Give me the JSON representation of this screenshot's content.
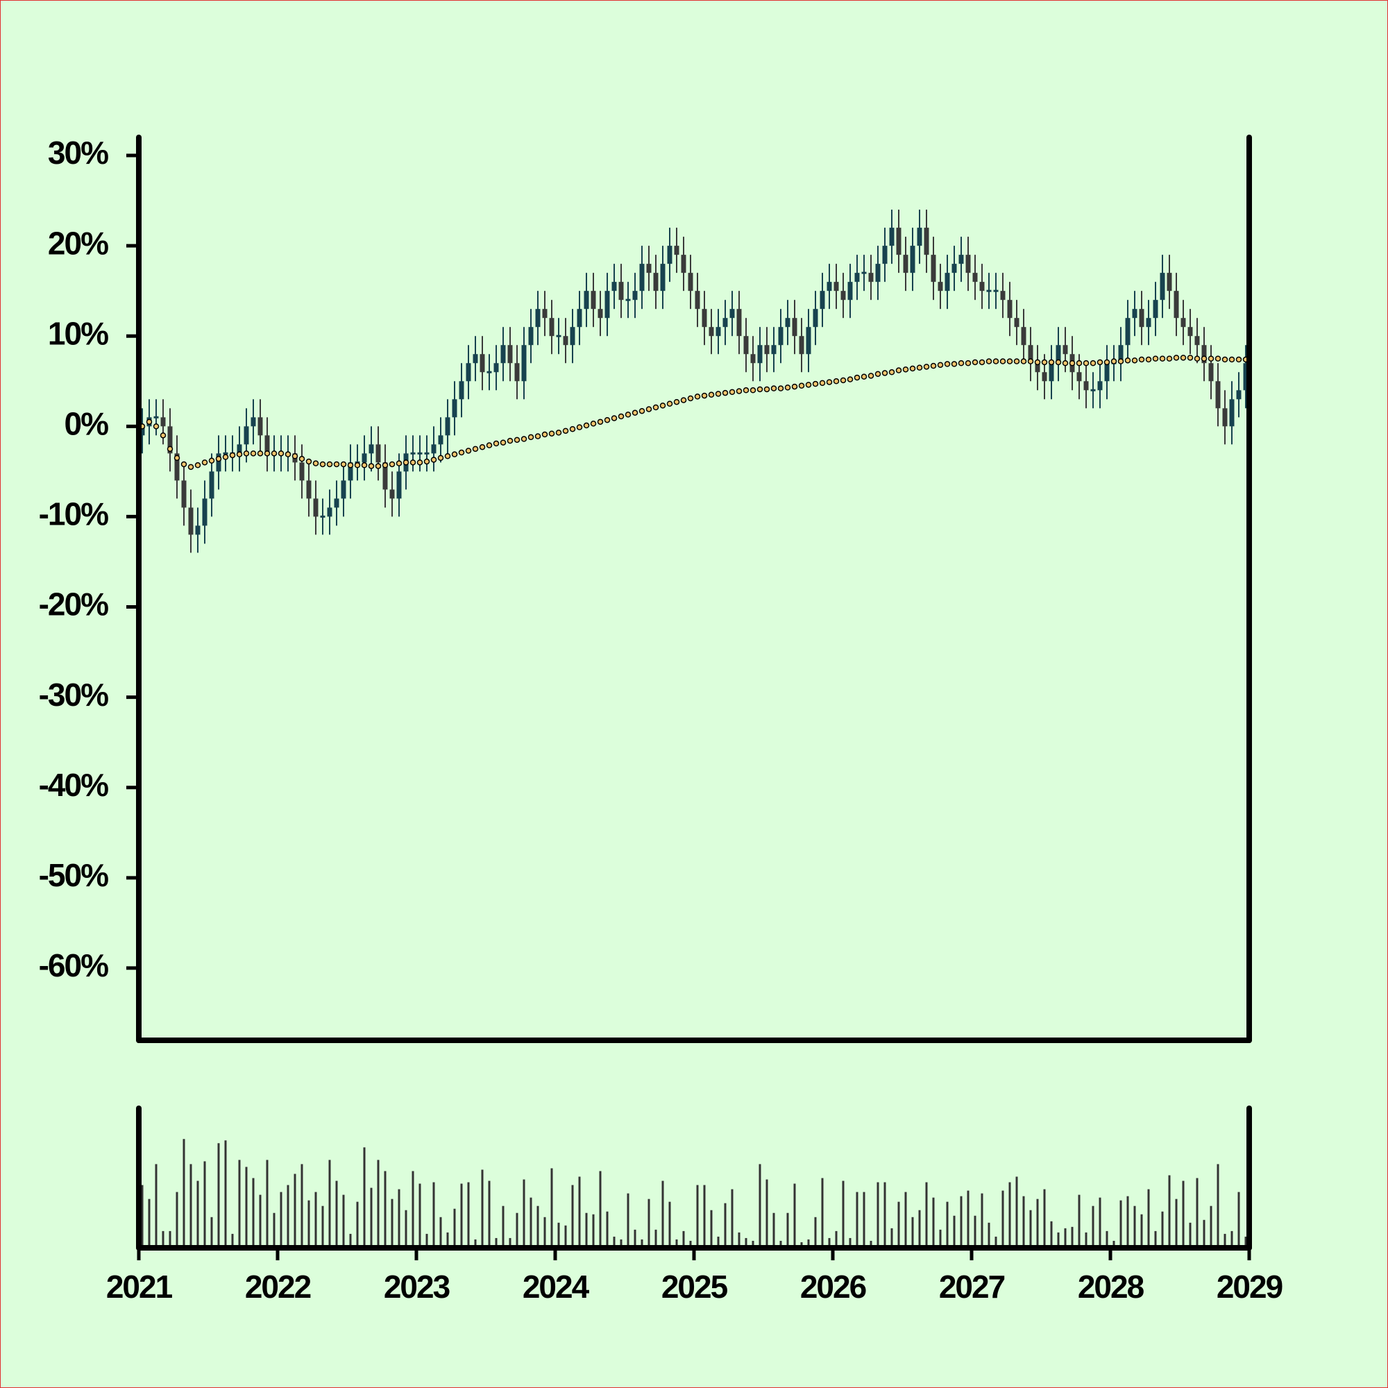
{
  "chart_data": {
    "type": "candlestick",
    "x": [
      2021.025,
      2021.075,
      2021.125,
      2021.175,
      2021.225,
      2021.275,
      2021.325,
      2021.375,
      2021.425,
      2021.475,
      2021.525,
      2021.575,
      2021.625,
      2021.675,
      2021.725,
      2021.775,
      2021.825,
      2021.875,
      2021.925,
      2021.975,
      2022.025,
      2022.075,
      2022.125,
      2022.175,
      2022.225,
      2022.275,
      2022.325,
      2022.375,
      2022.425,
      2022.475,
      2022.525,
      2022.575,
      2022.625,
      2022.675,
      2022.725,
      2022.775,
      2022.825,
      2022.875,
      2022.925,
      2022.975,
      2023.025,
      2023.075,
      2023.125,
      2023.175,
      2023.225,
      2023.275,
      2023.325,
      2023.375,
      2023.425,
      2023.475,
      2023.525,
      2023.575,
      2023.625,
      2023.675,
      2023.725,
      2023.775,
      2023.825,
      2023.875,
      2023.925,
      2023.975,
      2024.025,
      2024.075,
      2024.125,
      2024.175,
      2024.225,
      2024.275,
      2024.325,
      2024.375,
      2024.425,
      2024.475,
      2024.525,
      2024.575,
      2024.625,
      2024.675,
      2024.725,
      2024.775,
      2024.825,
      2024.875,
      2024.925,
      2024.975,
      2025.025,
      2025.075,
      2025.125,
      2025.175,
      2025.225,
      2025.275,
      2025.325,
      2025.375,
      2025.425,
      2025.475,
      2025.525,
      2025.575,
      2025.625,
      2025.675,
      2025.725,
      2025.775,
      2025.825,
      2025.875,
      2025.925,
      2025.975,
      2026.025,
      2026.075,
      2026.125,
      2026.175,
      2026.225,
      2026.275,
      2026.325,
      2026.375,
      2026.425,
      2026.475,
      2026.525,
      2026.575,
      2026.625,
      2026.675,
      2026.725,
      2026.775,
      2026.825,
      2026.875,
      2026.925,
      2026.975,
      2027.025,
      2027.075,
      2027.125,
      2027.175,
      2027.225,
      2027.275,
      2027.325,
      2027.375,
      2027.425,
      2027.475,
      2027.525,
      2027.575,
      2027.625,
      2027.675,
      2027.725,
      2027.775,
      2027.825,
      2027.875,
      2027.925,
      2027.975,
      2028.025,
      2028.075,
      2028.125,
      2028.175,
      2028.225,
      2028.275,
      2028.325,
      2028.375,
      2028.425,
      2028.475,
      2028.525,
      2028.575,
      2028.625,
      2028.675,
      2028.725,
      2028.775,
      2028.825,
      2028.875,
      2028.925,
      2028.975
    ],
    "open": [
      -1,
      0,
      1,
      1,
      0,
      -3,
      -6,
      -9,
      -12,
      -11,
      -8,
      -5,
      -3,
      -3,
      -3,
      -2,
      0,
      1,
      -1,
      -3,
      -3,
      -3,
      -3,
      -4,
      -6,
      -8,
      -10,
      -10,
      -9,
      -8,
      -6,
      -4,
      -4,
      -3,
      -2,
      -4,
      -7,
      -8,
      -5,
      -3,
      -3,
      -3,
      -3,
      -2,
      -1,
      1,
      3,
      5,
      7,
      8,
      6,
      6,
      7,
      9,
      7,
      5,
      9,
      11,
      13,
      12,
      10,
      10,
      9,
      11,
      13,
      15,
      13,
      12,
      15,
      16,
      14,
      14,
      15,
      18,
      17,
      15,
      18,
      20,
      19,
      17,
      15,
      13,
      11,
      10,
      11,
      12,
      13,
      10,
      8,
      7,
      9,
      8,
      9,
      11,
      12,
      10,
      8,
      11,
      13,
      15,
      16,
      15,
      14,
      16,
      17,
      17,
      16,
      18,
      20,
      22,
      19,
      17,
      20,
      22,
      19,
      16,
      15,
      17,
      18,
      19,
      17,
      16,
      15,
      15,
      15,
      14,
      12,
      11,
      9,
      7,
      6,
      5,
      7,
      9,
      8,
      6,
      5,
      4,
      4,
      5,
      7,
      7,
      9,
      12,
      13,
      11,
      12,
      14,
      17,
      15,
      12,
      11,
      10,
      9,
      7,
      5,
      2,
      0,
      3,
      4
    ],
    "high": [
      2,
      3,
      3,
      3,
      2,
      -1,
      -4,
      -7,
      -9,
      -6,
      -3,
      -1,
      -1,
      -1,
      0,
      2,
      3,
      3,
      1,
      -1,
      -1,
      -1,
      -1,
      -2,
      -4,
      -6,
      -8,
      -7,
      -6,
      -4,
      -2,
      -2,
      -1,
      0,
      0,
      -2,
      -5,
      -3,
      -1,
      -1,
      -1,
      -1,
      0,
      1,
      3,
      5,
      7,
      9,
      10,
      10,
      8,
      9,
      11,
      11,
      9,
      11,
      13,
      15,
      15,
      14,
      12,
      12,
      13,
      15,
      17,
      17,
      15,
      17,
      18,
      18,
      16,
      17,
      20,
      20,
      19,
      20,
      22,
      22,
      21,
      19,
      17,
      15,
      13,
      13,
      14,
      15,
      15,
      12,
      10,
      11,
      11,
      11,
      13,
      14,
      14,
      12,
      13,
      15,
      17,
      18,
      18,
      17,
      18,
      19,
      19,
      19,
      20,
      22,
      24,
      24,
      21,
      22,
      24,
      24,
      21,
      18,
      19,
      20,
      21,
      21,
      19,
      18,
      17,
      17,
      17,
      16,
      14,
      13,
      11,
      9,
      8,
      9,
      11,
      11,
      10,
      8,
      7,
      6,
      7,
      9,
      9,
      11,
      14,
      15,
      15,
      14,
      16,
      19,
      19,
      17,
      14,
      13,
      12,
      11,
      9,
      7,
      4,
      5,
      6,
      9
    ],
    "low": [
      -3,
      -2,
      -1,
      -2,
      -5,
      -8,
      -11,
      -14,
      -14,
      -13,
      -10,
      -7,
      -5,
      -5,
      -5,
      -4,
      -2,
      -3,
      -5,
      -5,
      -5,
      -5,
      -6,
      -8,
      -10,
      -12,
      -12,
      -12,
      -11,
      -10,
      -8,
      -6,
      -6,
      -5,
      -6,
      -9,
      -10,
      -10,
      -7,
      -5,
      -5,
      -5,
      -5,
      -4,
      -3,
      -1,
      1,
      3,
      5,
      4,
      4,
      4,
      5,
      5,
      3,
      3,
      7,
      9,
      10,
      8,
      8,
      7,
      7,
      9,
      11,
      11,
      10,
      10,
      13,
      12,
      12,
      12,
      13,
      15,
      13,
      13,
      16,
      17,
      15,
      13,
      11,
      9,
      8,
      8,
      9,
      10,
      8,
      6,
      5,
      5,
      6,
      6,
      7,
      9,
      8,
      6,
      6,
      9,
      11,
      13,
      13,
      12,
      12,
      14,
      15,
      14,
      14,
      16,
      18,
      17,
      15,
      15,
      18,
      17,
      14,
      13,
      13,
      15,
      16,
      15,
      14,
      13,
      13,
      13,
      12,
      10,
      9,
      7,
      5,
      4,
      3,
      3,
      5,
      6,
      4,
      3,
      2,
      2,
      2,
      3,
      5,
      5,
      7,
      10,
      9,
      9,
      10,
      12,
      13,
      10,
      9,
      8,
      7,
      5,
      3,
      0,
      -2,
      -2,
      1,
      2
    ],
    "close": [
      0,
      1,
      1,
      0,
      -3,
      -6,
      -9,
      -12,
      -11,
      -8,
      -5,
      -3,
      -3,
      -3,
      -2,
      0,
      1,
      -1,
      -3,
      -3,
      -3,
      -3,
      -4,
      -6,
      -8,
      -10,
      -10,
      -9,
      -8,
      -6,
      -4,
      -4,
      -3,
      -2,
      -4,
      -7,
      -8,
      -5,
      -3,
      -3,
      -3,
      -3,
      -2,
      -1,
      1,
      3,
      5,
      7,
      8,
      6,
      6,
      7,
      9,
      7,
      5,
      9,
      11,
      13,
      12,
      10,
      10,
      9,
      11,
      13,
      15,
      13,
      12,
      15,
      16,
      14,
      14,
      15,
      18,
      17,
      15,
      18,
      20,
      19,
      17,
      15,
      13,
      11,
      10,
      11,
      12,
      13,
      10,
      8,
      7,
      9,
      8,
      9,
      11,
      12,
      10,
      8,
      11,
      13,
      15,
      16,
      15,
      14,
      16,
      17,
      17,
      16,
      18,
      20,
      22,
      19,
      17,
      20,
      22,
      19,
      16,
      15,
      17,
      18,
      19,
      17,
      16,
      15,
      15,
      15,
      14,
      12,
      11,
      9,
      7,
      6,
      5,
      7,
      9,
      8,
      6,
      5,
      4,
      4,
      5,
      7,
      7,
      9,
      12,
      13,
      11,
      12,
      14,
      17,
      15,
      12,
      11,
      10,
      9,
      7,
      5,
      2,
      0,
      3,
      4,
      7
    ],
    "up_color": "#17424f",
    "down_color": "#3a3a3a",
    "moving_average": {
      "color": "#f2c46d",
      "values": [
        0,
        0.5,
        0,
        -1,
        -2.5,
        -3.5,
        -4.2,
        -4.5,
        -4.3,
        -4,
        -3.8,
        -3.6,
        -3.4,
        -3.2,
        -3.1,
        -3,
        -3,
        -3,
        -3,
        -3,
        -3,
        -3.1,
        -3.3,
        -3.6,
        -3.9,
        -4.1,
        -4.2,
        -4.2,
        -4.2,
        -4.2,
        -4.3,
        -4.3,
        -4.3,
        -4.4,
        -4.4,
        -4.3,
        -4.2,
        -4.1,
        -4,
        -4,
        -4,
        -3.9,
        -3.7,
        -3.5,
        -3.3,
        -3.1,
        -2.9,
        -2.7,
        -2.5,
        -2.3,
        -2.1,
        -1.9,
        -1.8,
        -1.6,
        -1.5,
        -1.4,
        -1.2,
        -1.1,
        -0.9,
        -0.8,
        -0.7,
        -0.5,
        -0.3,
        -0.1,
        0.1,
        0.3,
        0.5,
        0.7,
        0.9,
        1.1,
        1.3,
        1.5,
        1.7,
        1.9,
        2.1,
        2.3,
        2.5,
        2.7,
        2.9,
        3.1,
        3.3,
        3.4,
        3.5,
        3.6,
        3.7,
        3.8,
        3.9,
        4,
        4,
        4.1,
        4.1,
        4.2,
        4.2,
        4.3,
        4.4,
        4.5,
        4.6,
        4.7,
        4.8,
        4.9,
        5,
        5.1,
        5.2,
        5.4,
        5.5,
        5.6,
        5.8,
        5.9,
        6,
        6.2,
        6.3,
        6.4,
        6.5,
        6.6,
        6.7,
        6.8,
        6.9,
        6.9,
        7,
        7,
        7.1,
        7.1,
        7.2,
        7.2,
        7.2,
        7.2,
        7.2,
        7.2,
        7.2,
        7.1,
        7.1,
        7.1,
        7.1,
        7,
        7,
        7,
        7,
        7,
        7.1,
        7.1,
        7.2,
        7.2,
        7.3,
        7.3,
        7.4,
        7.4,
        7.5,
        7.5,
        7.5,
        7.6,
        7.6,
        7.6,
        7.5,
        7.5,
        7.5,
        7.5,
        7.4,
        7.4,
        7.4,
        7.4
      ]
    },
    "volume": {
      "color": "#333333",
      "ylim": [
        0,
        100
      ],
      "values": [
        45,
        35,
        60,
        12,
        12,
        40,
        78,
        60,
        48,
        62,
        22,
        75,
        77,
        10,
        63,
        58,
        50,
        38,
        63,
        25,
        40,
        45,
        53,
        60,
        34,
        40,
        30,
        63,
        48,
        38,
        10,
        33,
        72,
        43,
        63,
        55,
        35,
        42,
        27,
        55,
        46,
        10,
        47,
        22,
        11,
        28,
        46,
        47,
        6,
        56,
        48,
        7,
        30,
        7,
        25,
        49,
        36,
        30,
        22,
        57,
        18,
        16,
        45,
        51,
        25,
        24,
        55,
        26,
        8,
        6,
        39,
        13,
        6,
        35,
        13,
        48,
        33,
        6,
        12,
        5,
        45,
        45,
        27,
        8,
        32,
        42,
        11,
        7,
        5,
        60,
        49,
        25,
        5,
        25,
        46,
        4,
        6,
        22,
        50,
        7,
        12,
        48,
        7,
        40,
        40,
        5,
        47,
        47,
        14,
        33,
        40,
        22,
        27,
        47,
        36,
        13,
        33,
        23,
        37,
        41,
        23,
        39,
        18,
        8,
        41,
        47,
        51,
        37,
        27,
        35,
        42,
        19,
        11,
        14,
        15,
        38,
        11,
        30,
        36,
        12,
        5,
        34,
        37,
        30,
        24,
        42,
        12,
        26,
        52,
        35,
        48,
        18,
        50,
        20,
        30,
        60,
        10,
        12,
        40,
        8
      ]
    },
    "xlim": [
      2021,
      2029
    ],
    "xticks": [
      2021,
      2022,
      2023,
      2024,
      2025,
      2026,
      2027,
      2028,
      2029
    ],
    "ylim": [
      -68,
      32
    ],
    "yticks": [
      {
        "value": -60,
        "label": "-60%"
      },
      {
        "value": -50,
        "label": "-50%"
      },
      {
        "value": -40,
        "label": "-40%"
      },
      {
        "value": -30,
        "label": "-30%"
      },
      {
        "value": -20,
        "label": "-20%"
      },
      {
        "value": -10,
        "label": "-10%"
      },
      {
        "value": 0,
        "label": "0%"
      },
      {
        "value": 10,
        "label": "10%"
      },
      {
        "value": 20,
        "label": "20%"
      },
      {
        "value": 30,
        "label": "30%"
      }
    ]
  }
}
